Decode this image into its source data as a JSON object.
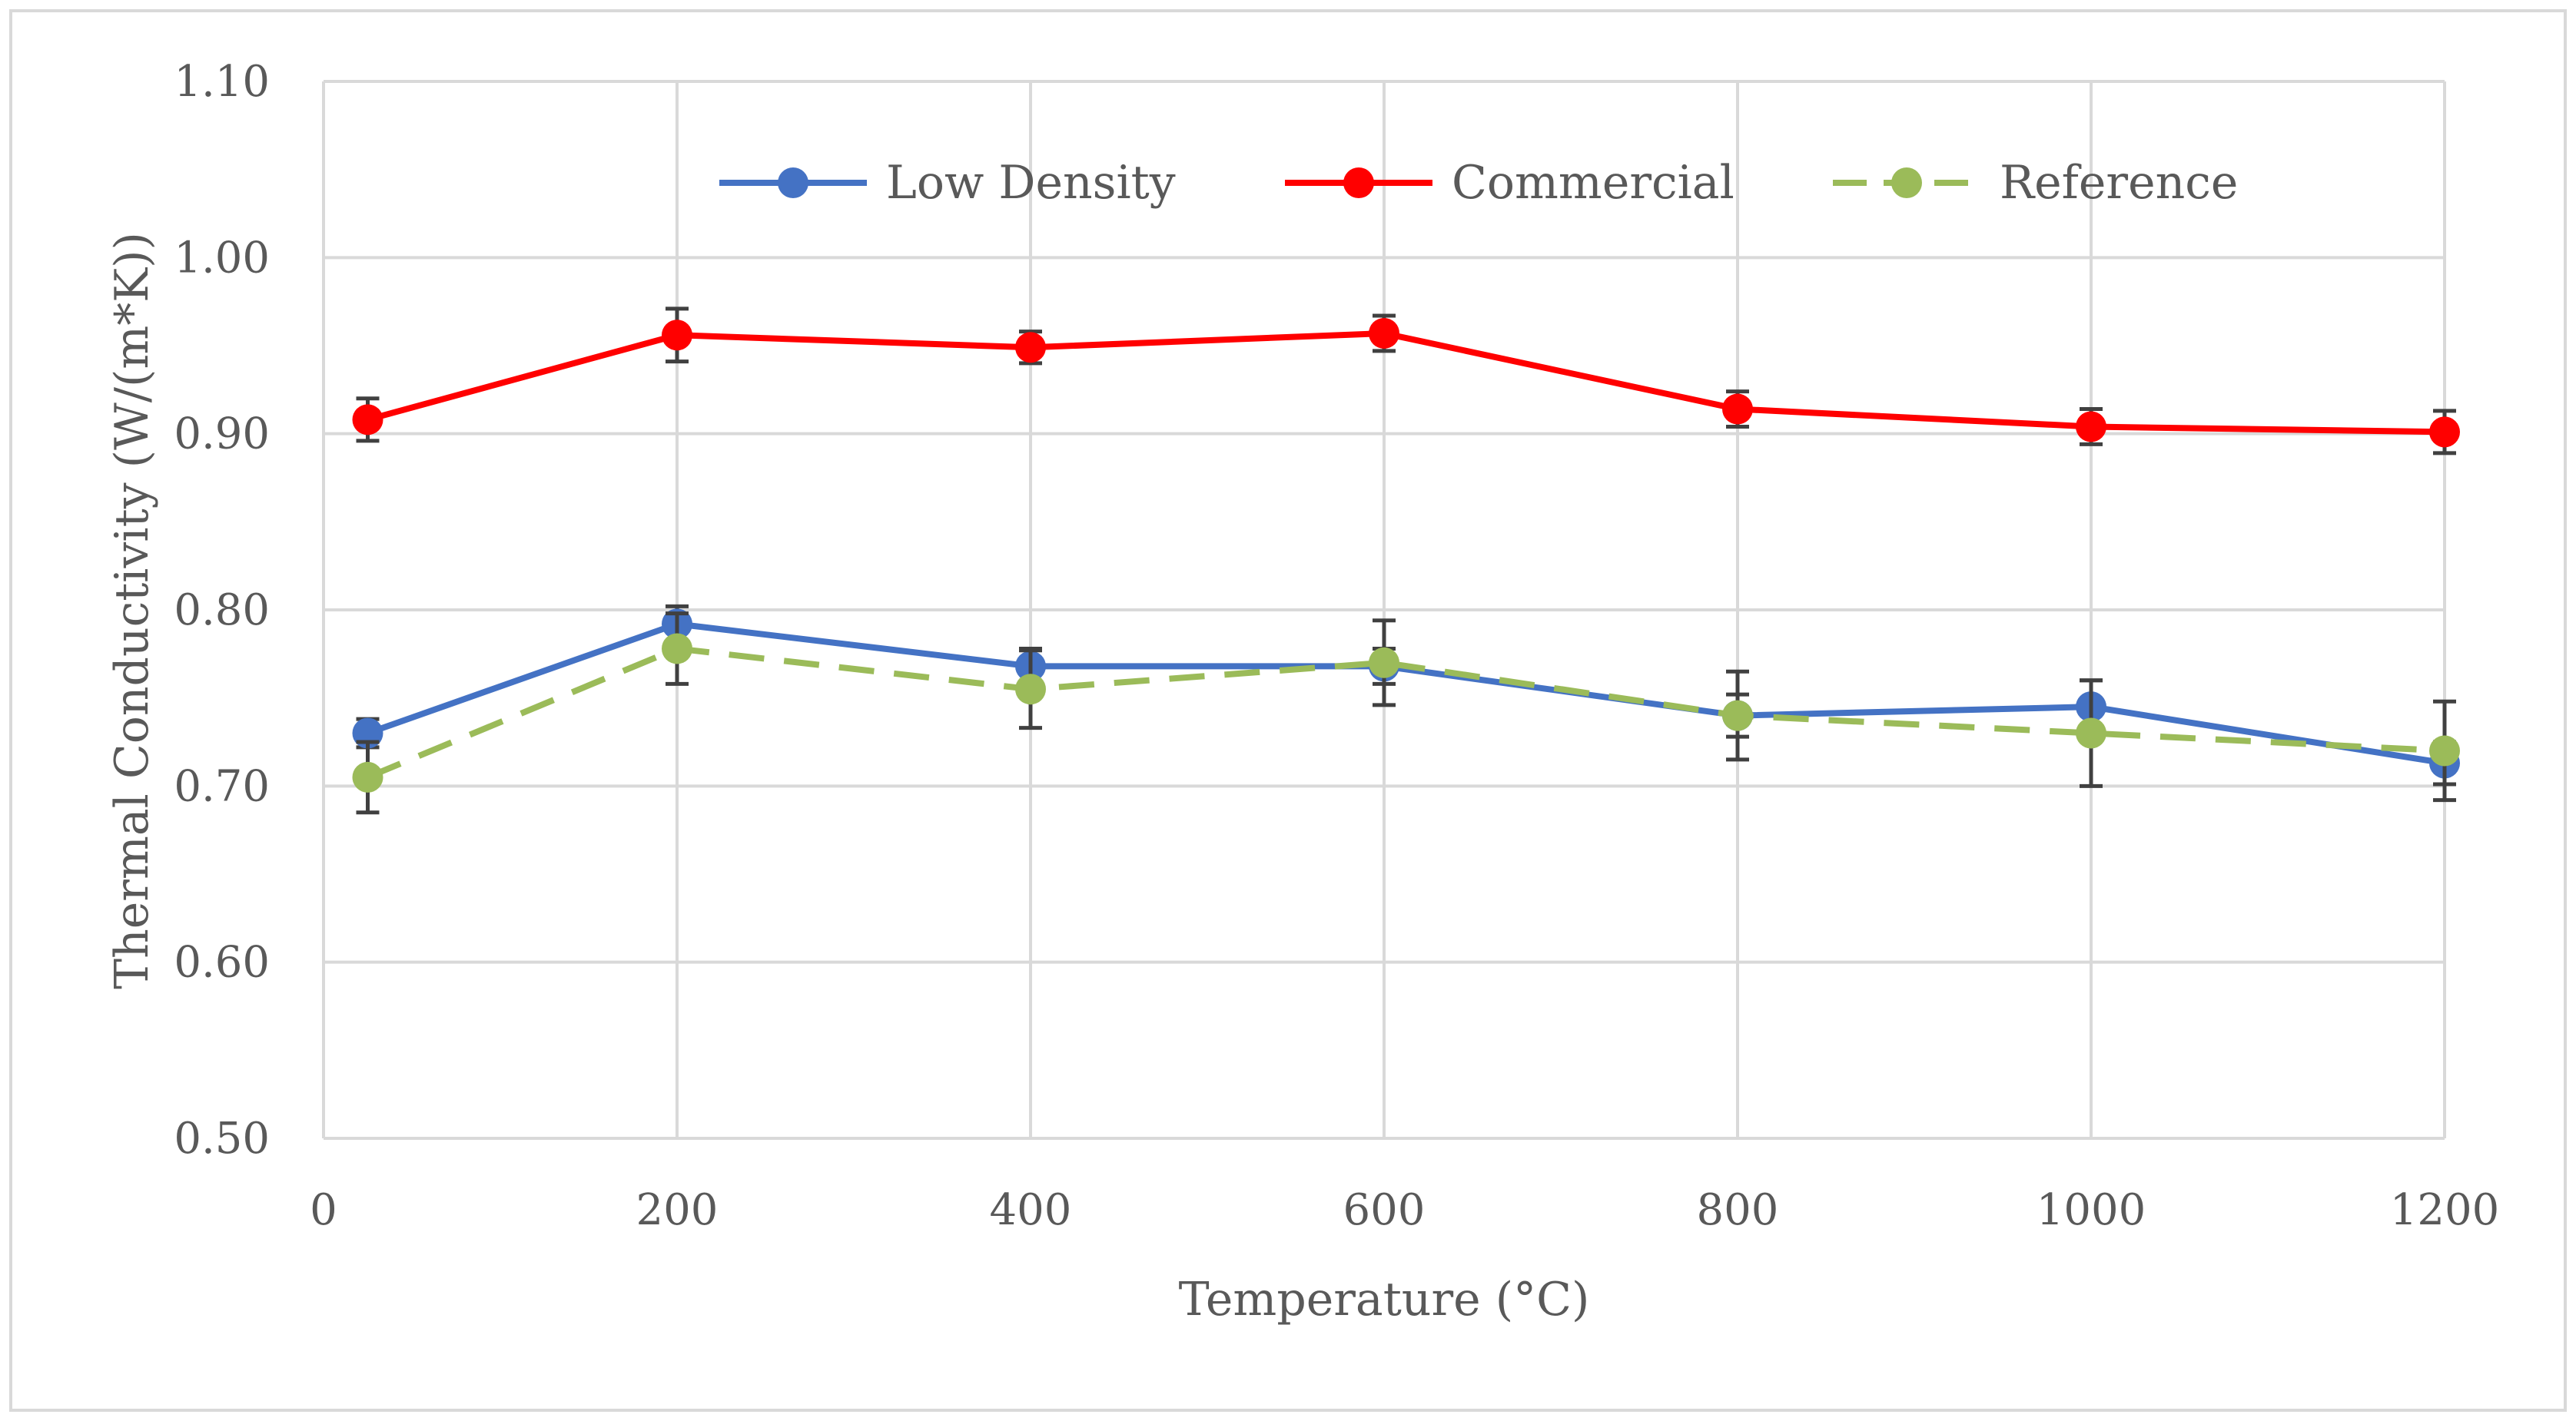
{
  "chart_data": {
    "type": "line",
    "title": "",
    "xlabel": "Temperature (°C)",
    "ylabel": "Thermal Conductivity (W/(m*K))",
    "xlim": [
      0,
      1200
    ],
    "ylim": [
      0.5,
      1.1
    ],
    "x_ticks": [
      0,
      200,
      400,
      600,
      800,
      1000,
      1200
    ],
    "x_tick_labels": [
      "0",
      "200",
      "400",
      "600",
      "800",
      "1000",
      "1200"
    ],
    "y_ticks": [
      0.5,
      0.6,
      0.7,
      0.8,
      0.9,
      1.0,
      1.1
    ],
    "y_tick_labels": [
      "0.50",
      "0.60",
      "0.70",
      "0.80",
      "0.90",
      "1.00",
      "1.10"
    ],
    "grid": true,
    "legend_position": "top-center",
    "series": [
      {
        "name": "Low Density",
        "color": "#4472C4",
        "dashed": false,
        "x": [
          25,
          200,
          400,
          600,
          800,
          1000,
          1200
        ],
        "y": [
          0.73,
          0.792,
          0.768,
          0.768,
          0.74,
          0.745,
          0.713
        ],
        "err": [
          0.008,
          0.01,
          0.01,
          0.01,
          0.012,
          0.015,
          0.012
        ]
      },
      {
        "name": "Commercial",
        "color": "#FF0000",
        "dashed": false,
        "x": [
          25,
          200,
          400,
          600,
          800,
          1000,
          1200
        ],
        "y": [
          0.908,
          0.956,
          0.949,
          0.957,
          0.914,
          0.904,
          0.901
        ],
        "err": [
          0.012,
          0.015,
          0.009,
          0.01,
          0.01,
          0.01,
          0.012
        ]
      },
      {
        "name": "Reference",
        "color": "#9BBB59",
        "dashed": true,
        "x": [
          25,
          200,
          400,
          600,
          800,
          1000,
          1200
        ],
        "y": [
          0.705,
          0.778,
          0.755,
          0.77,
          0.74,
          0.73,
          0.72
        ],
        "err": [
          0.02,
          0.02,
          0.022,
          0.024,
          0.025,
          0.03,
          0.028
        ]
      }
    ]
  }
}
